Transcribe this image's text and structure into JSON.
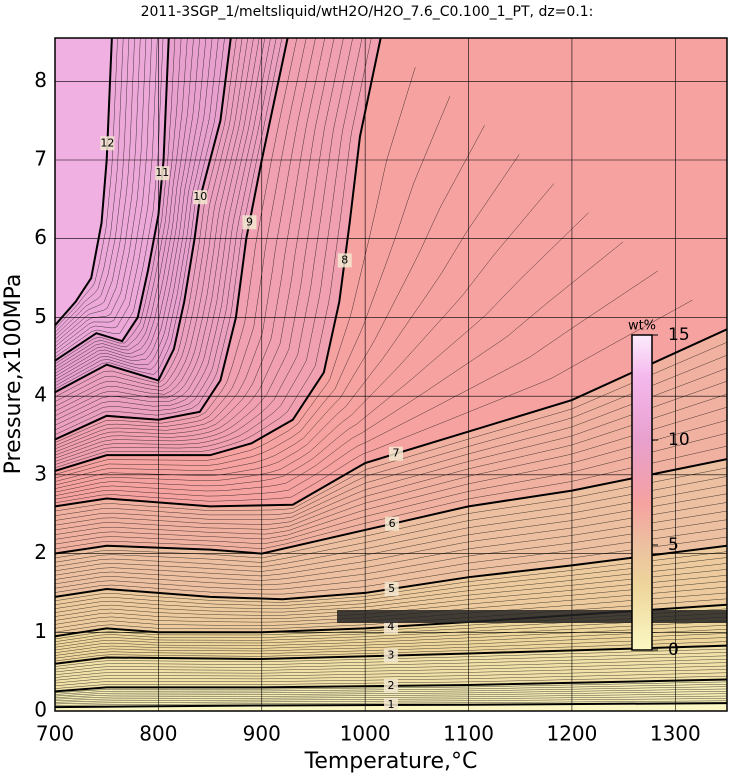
{
  "chart_data": {
    "type": "contour",
    "title": "2011-3SGP_1/meltsliquid/wtH2O/H2O_7.6_C0.100_1_PT, dz=0.1:",
    "x_label": "Temperature,°C",
    "y_label": "Pressure,x100MPa",
    "xlim": [
      700,
      1350
    ],
    "ylim": [
      0,
      8.55
    ],
    "xticks": [
      700,
      800,
      900,
      1000,
      1100,
      1200,
      1300
    ],
    "yticks": [
      0,
      1,
      2,
      3,
      4,
      5,
      6,
      7,
      8
    ],
    "grid": true,
    "contours": [
      {
        "level": 1,
        "x": [
          700,
          900,
          1100,
          1350
        ],
        "y": [
          0.05,
          0.07,
          0.08,
          0.1
        ]
      },
      {
        "level": 2,
        "x": [
          700,
          750,
          900,
          1100,
          1350
        ],
        "y": [
          0.25,
          0.3,
          0.3,
          0.33,
          0.4
        ]
      },
      {
        "level": 3,
        "x": [
          700,
          750,
          900,
          1100,
          1350
        ],
        "y": [
          0.6,
          0.68,
          0.66,
          0.73,
          0.83
        ]
      },
      {
        "level": 4,
        "x": [
          700,
          750,
          800,
          900,
          1000,
          1100,
          1350
        ],
        "y": [
          0.95,
          1.05,
          1.0,
          1.0,
          1.05,
          1.13,
          1.35
        ]
      },
      {
        "level": 5,
        "x": [
          700,
          750,
          850,
          920,
          1000,
          1100,
          1200,
          1350
        ],
        "y": [
          1.45,
          1.55,
          1.45,
          1.42,
          1.5,
          1.7,
          1.85,
          2.1
        ]
      },
      {
        "level": 6,
        "x": [
          700,
          750,
          850,
          900,
          1000,
          1100,
          1200,
          1350
        ],
        "y": [
          2.0,
          2.1,
          2.05,
          2.0,
          2.3,
          2.6,
          2.8,
          3.2
        ]
      },
      {
        "level": 7,
        "x": [
          700,
          750,
          850,
          930,
          1000,
          1100,
          1200,
          1350
        ],
        "y": [
          2.6,
          2.7,
          2.6,
          2.62,
          3.15,
          3.55,
          3.95,
          4.85
        ]
      },
      {
        "level": 8,
        "x": [
          700,
          750,
          850,
          890,
          930,
          960,
          975,
          985,
          995,
          1015
        ],
        "y": [
          3.05,
          3.25,
          3.25,
          3.4,
          3.7,
          4.3,
          5.2,
          6.2,
          7.3,
          8.55
        ]
      },
      {
        "level": 9,
        "x": [
          700,
          750,
          800,
          840,
          860,
          875,
          885,
          900,
          925
        ],
        "y": [
          3.45,
          3.75,
          3.7,
          3.8,
          4.2,
          5.0,
          6.0,
          7.0,
          8.55
        ]
      },
      {
        "level": 10,
        "x": [
          700,
          750,
          800,
          815,
          825,
          835,
          840,
          860,
          870
        ],
        "y": [
          4.05,
          4.4,
          4.2,
          4.6,
          5.2,
          6.0,
          6.5,
          7.5,
          8.55
        ]
      },
      {
        "level": 11,
        "x": [
          700,
          740,
          765,
          780,
          790,
          800,
          805,
          810
        ],
        "y": [
          4.45,
          4.8,
          4.7,
          5.0,
          5.6,
          6.3,
          7.0,
          8.55
        ]
      },
      {
        "level": 12,
        "x": [
          700,
          720,
          735,
          745,
          750,
          755
        ],
        "y": [
          4.9,
          5.2,
          5.5,
          6.2,
          7.0,
          8.55
        ]
      }
    ],
    "colorbar": {
      "label": "wt%",
      "clim": [
        0,
        15
      ],
      "ticks": [
        0,
        5,
        10,
        15
      ]
    }
  }
}
